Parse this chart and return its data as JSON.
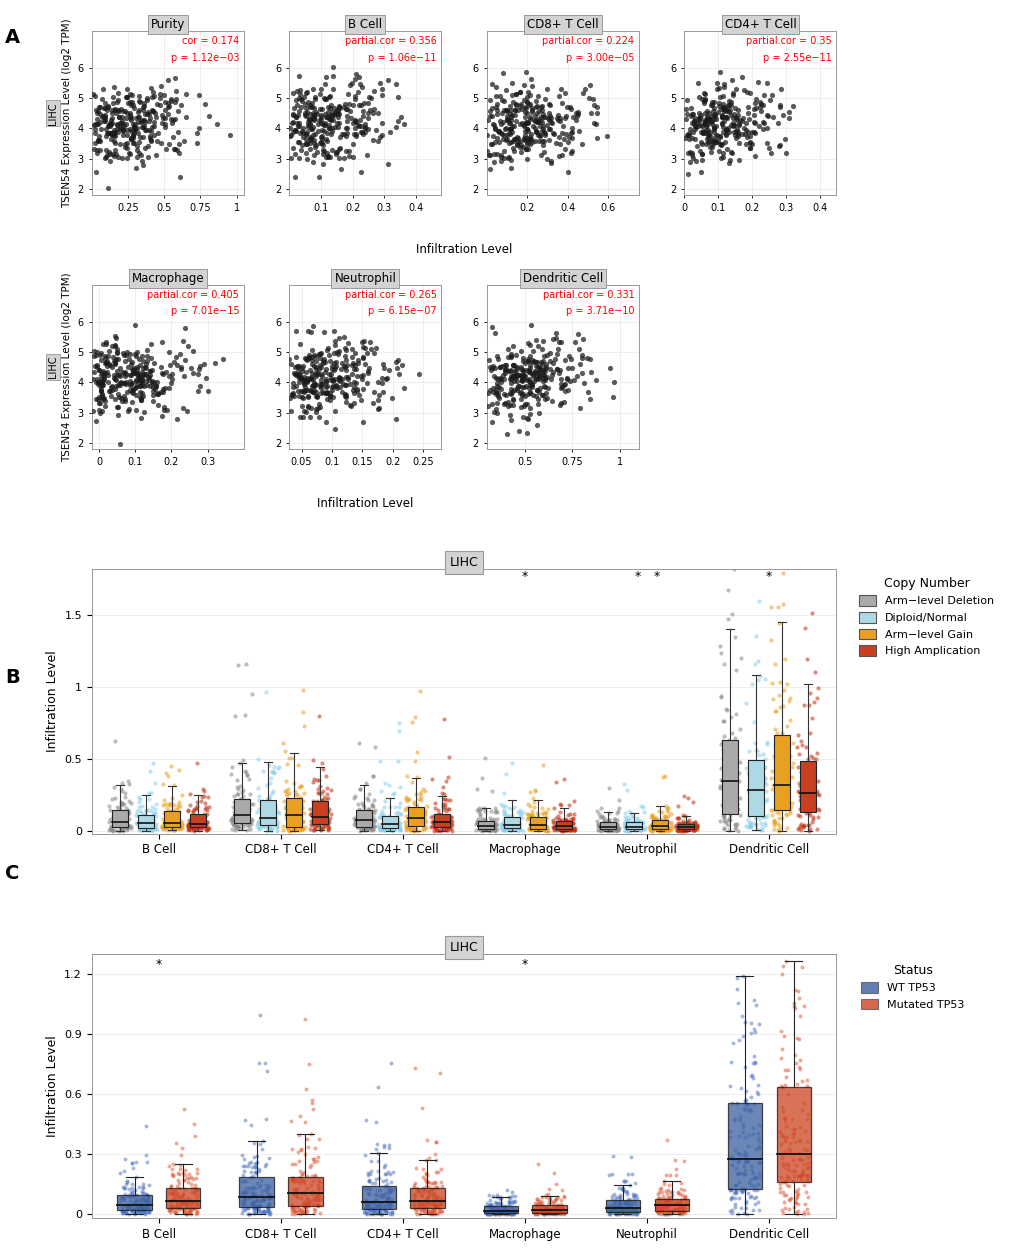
{
  "panel_A": {
    "row1": [
      {
        "title": "Purity",
        "cor_label": "cor = 0.174",
        "p_label": "p = 1.12e−03",
        "xlim": [
          0.0,
          1.05
        ],
        "xticks": [
          0.25,
          0.5,
          0.75,
          1.0
        ]
      },
      {
        "title": "B Cell",
        "cor_label": "partial.cor = 0.356",
        "p_label": "p = 1.06e−11",
        "xlim": [
          0.0,
          0.48
        ],
        "xticks": [
          0.1,
          0.2,
          0.3,
          0.4
        ]
      },
      {
        "title": "CD8+ T Cell",
        "cor_label": "partial.cor = 0.224",
        "p_label": "p = 3.00e−05",
        "xlim": [
          0.0,
          0.75
        ],
        "xticks": [
          0.2,
          0.4,
          0.6
        ]
      },
      {
        "title": "CD4+ T Cell",
        "cor_label": "partial.cor = 0.35",
        "p_label": "p = 2.55e−11",
        "xlim": [
          0.0,
          0.45
        ],
        "xticks": [
          0.0,
          0.1,
          0.2,
          0.3,
          0.4
        ]
      }
    ],
    "row2": [
      {
        "title": "Macrophage",
        "cor_label": "partial.cor = 0.405",
        "p_label": "p = 7.01e−15",
        "xlim": [
          -0.02,
          0.4
        ],
        "xticks": [
          0.0,
          0.1,
          0.2,
          0.3
        ]
      },
      {
        "title": "Neutrophil",
        "cor_label": "partial.cor = 0.265",
        "p_label": "p = 6.15e−07",
        "xlim": [
          0.03,
          0.28
        ],
        "xticks": [
          0.05,
          0.1,
          0.15,
          0.2,
          0.25
        ]
      },
      {
        "title": "Dendritic Cell",
        "cor_label": "partial.cor = 0.331",
        "p_label": "p = 3.71e−10",
        "xlim": [
          0.3,
          1.1
        ],
        "xticks": [
          0.5,
          0.75,
          1.0
        ]
      }
    ],
    "ylim": [
      1.8,
      7.2
    ],
    "yticks": [
      2,
      3,
      4,
      5,
      6
    ],
    "ylabel": "TSEN54 Expression Level (log2 TPM)",
    "scatter_color": "#1a1a1a",
    "line_color": "#2166ac",
    "ci_color": "#aaaaaa"
  },
  "panel_B": {
    "title": "LIHC",
    "ylabel": "Infiltration Level",
    "categories": [
      "B Cell",
      "CD8+ T Cell",
      "CD4+ T Cell",
      "Macrophage",
      "Neutrophil",
      "Dendritic Cell"
    ],
    "ylim": [
      -0.02,
      1.82
    ],
    "yticks": [
      0.0,
      0.5,
      1.0,
      1.5
    ],
    "significance": {
      "Macrophage": "*",
      "Neutrophil": "**",
      "Dendritic Cell": "*"
    },
    "legend_title": "Copy Number",
    "legend_labels": [
      "Arm−level Deletion",
      "Diploid/Normal",
      "Arm−level Gain",
      "High Amplication"
    ],
    "group_colors": [
      "#aaaaaa",
      "#add8e6",
      "#e8a020",
      "#c84020"
    ],
    "group_jitter_colors": [
      "#888888",
      "#87ceeb",
      "#e8a020",
      "#c03010"
    ]
  },
  "panel_C": {
    "title": "LIHC",
    "ylabel": "Infiltration Level",
    "categories": [
      "B Cell",
      "CD8+ T Cell",
      "CD4+ T Cell",
      "Macrophage",
      "Neutrophil",
      "Dendritic Cell"
    ],
    "ylim": [
      -0.02,
      1.3
    ],
    "yticks": [
      0.0,
      0.3,
      0.6,
      0.9,
      1.2
    ],
    "significance": {
      "B Cell": "*",
      "Macrophage": "*"
    },
    "legend_title": "Status",
    "legend_labels": [
      "WT TP53",
      "Mutated TP53"
    ],
    "group_colors": [
      "#3a5fa0",
      "#cc4422"
    ],
    "group_jitter_colors": [
      "#4a6fbe",
      "#dd5533"
    ]
  },
  "background_color": "#ffffff",
  "strip_bg": "#d3d3d3",
  "grid_color": "#e8e8e8"
}
